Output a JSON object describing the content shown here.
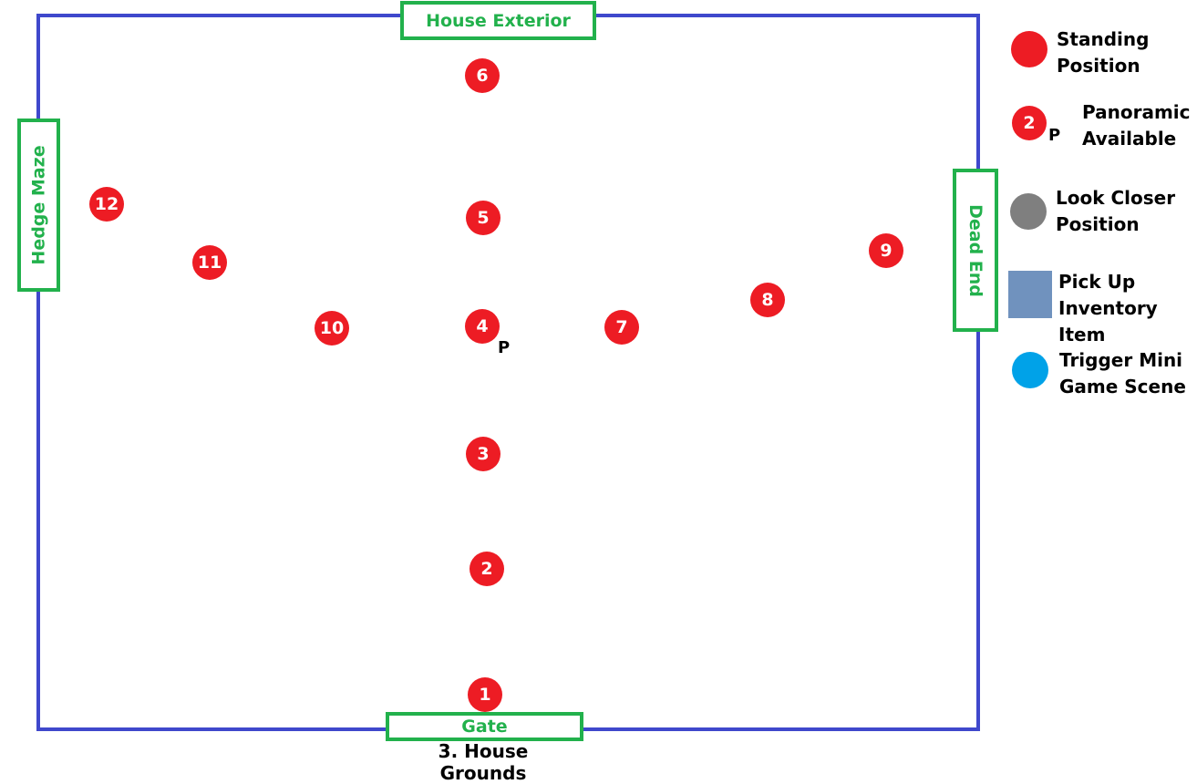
{
  "diagram": {
    "title": "3. House Grounds",
    "exits": {
      "top": "House Exterior",
      "bottom": "Gate",
      "left": "Hedge Maze",
      "right": "Dead End"
    },
    "positions": [
      "1",
      "2",
      "3",
      "4",
      "5",
      "6",
      "7",
      "8",
      "9",
      "10",
      "11",
      "12"
    ],
    "panoramic_marker": "P"
  },
  "legend": {
    "standing": "Standing Position",
    "standing_line1": "Standing",
    "standing_line2": "Position",
    "panoramic_sample_number": "2",
    "panoramic_marker": "P",
    "panoramic_line1": "Panoramic",
    "panoramic_line2": "Available",
    "look_closer_line1": "Look Closer",
    "look_closer_line2": "Position",
    "pickup_line1": "Pick Up",
    "pickup_line2": "Inventory Item",
    "minigame_line1": "Trigger Mini",
    "minigame_line2": "Game Scene"
  },
  "colors": {
    "boundary": "#3f48cc",
    "exit": "#22b14c",
    "standing": "#ed1c24",
    "look_closer": "#7f7f7f",
    "pickup": "#7092be",
    "minigame": "#00a2e8"
  }
}
